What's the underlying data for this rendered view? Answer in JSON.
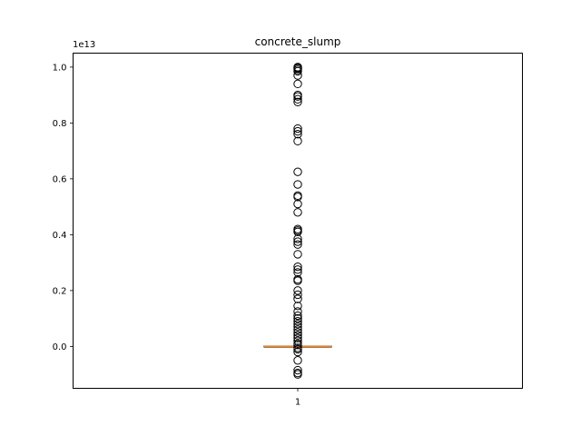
{
  "chart_data": {
    "type": "box",
    "title": "concrete_slump",
    "xlabel": "",
    "ylabel": "",
    "y_offset_label": "1e13",
    "y_scale": 10000000000000.0,
    "ylim": [
      -1500000000000.0,
      10500000000000.0
    ],
    "yticks": [
      0.0,
      0.2,
      0.4,
      0.6,
      0.8,
      1.0
    ],
    "ytick_labels": [
      "0.0",
      "0.2",
      "0.4",
      "0.6",
      "0.8",
      "1.0"
    ],
    "categories": [
      "1"
    ],
    "grid": false,
    "box": {
      "q1": -10000000000.0,
      "median": 0,
      "q3": 10000000000.0,
      "whisker_low": -20000000000.0,
      "whisker_high": 20000000000.0
    },
    "outliers": [
      10000000000000.0,
      9980000000000.0,
      9950000000000.0,
      9900000000000.0,
      9850000000000.0,
      9700000000000.0,
      9400000000000.0,
      9000000000000.0,
      8950000000000.0,
      8850000000000.0,
      8750000000000.0,
      7800000000000.0,
      7700000000000.0,
      7600000000000.0,
      7350000000000.0,
      6250000000000.0,
      5800000000000.0,
      5400000000000.0,
      5350000000000.0,
      5100000000000.0,
      4800000000000.0,
      4200000000000.0,
      4150000000000.0,
      4100000000000.0,
      3850000000000.0,
      3750000000000.0,
      3650000000000.0,
      3300000000000.0,
      2850000000000.0,
      2750000000000.0,
      2650000000000.0,
      2400000000000.0,
      2350000000000.0,
      2000000000000.0,
      1850000000000.0,
      1700000000000.0,
      1450000000000.0,
      1250000000000.0,
      1100000000000.0,
      1000000000000.0,
      900000000000.0,
      800000000000.0,
      700000000000.0,
      600000000000.0,
      500000000000.0,
      400000000000.0,
      300000000000.0,
      200000000000.0,
      100000000000.0,
      50000000000.0,
      -50000000000.0,
      -100000000000.0,
      -200000000000.0,
      -500000000000.0,
      -850000000000.0,
      -950000000000.0,
      -1000000000000.0
    ],
    "colors": {
      "box": "#000000",
      "median": "#ff7f0e",
      "flier": "#000000"
    }
  }
}
